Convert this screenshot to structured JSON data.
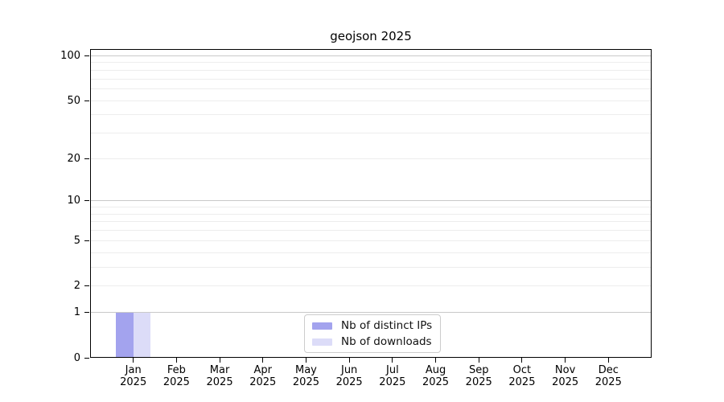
{
  "figure": {
    "title": "geojson 2025"
  },
  "chart_data": {
    "type": "bar",
    "title": "geojson 2025",
    "categories": [
      "Jan 2025",
      "Feb 2025",
      "Mar 2025",
      "Apr 2025",
      "May 2025",
      "Jun 2025",
      "Jul 2025",
      "Aug 2025",
      "Sep 2025",
      "Oct 2025",
      "Nov 2025",
      "Dec 2025"
    ],
    "x_tick_months": [
      "Jan",
      "Feb",
      "Mar",
      "Apr",
      "May",
      "Jun",
      "Jul",
      "Aug",
      "Sep",
      "Oct",
      "Nov",
      "Dec"
    ],
    "x_tick_year": "2025",
    "series": [
      {
        "name": "Nb of distinct IPs",
        "color": "#a3a3ee",
        "values": [
          1,
          0,
          0,
          0,
          0,
          0,
          0,
          0,
          0,
          0,
          0,
          0
        ]
      },
      {
        "name": "Nb of downloads",
        "color": "#dcdcf8",
        "values": [
          1,
          0,
          0,
          0,
          0,
          0,
          0,
          0,
          0,
          0,
          0,
          0
        ]
      }
    ],
    "y_axis": {
      "scale": "log1p",
      "range": [
        0,
        111
      ],
      "tick_values": [
        0,
        1,
        2,
        5,
        10,
        20,
        50,
        100
      ],
      "tick_labels": [
        "0",
        "1",
        "2",
        "5",
        "10",
        "20",
        "50",
        "100"
      ],
      "major_gridlines": [
        1,
        10,
        100
      ],
      "minor_gridlines": [
        2,
        3,
        4,
        5,
        6,
        7,
        8,
        9,
        20,
        30,
        40,
        50,
        60,
        70,
        80,
        90
      ],
      "grid": true
    },
    "xlabel": "",
    "ylabel": "",
    "legend": {
      "position": "lower center",
      "entries": [
        "Nb of distinct IPs",
        "Nb of downloads"
      ]
    },
    "colors": {
      "spine": "#000000",
      "grid_major": "#c9c9c9",
      "grid_minor": "#ededed",
      "text": "#000000"
    }
  }
}
